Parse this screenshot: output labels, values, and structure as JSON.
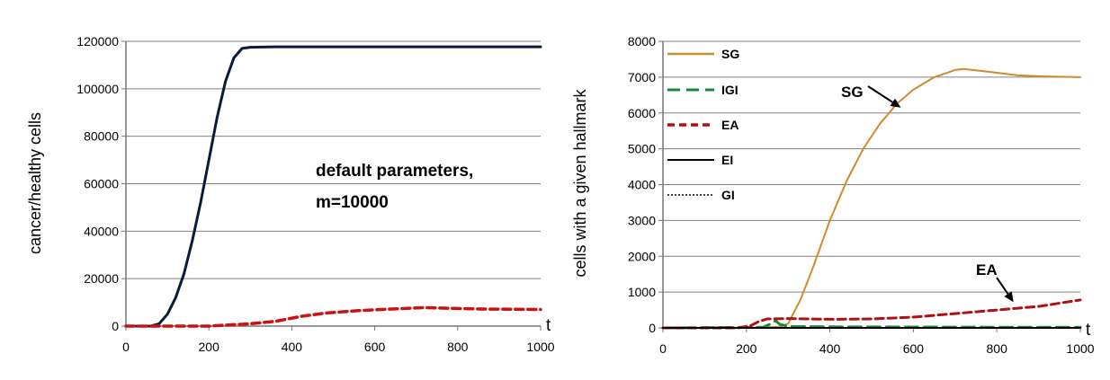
{
  "chart_data": [
    {
      "type": "line",
      "xlabel": "t",
      "ylabel": "cancer/healthy cells",
      "xlim": [
        0,
        1000
      ],
      "ylim": [
        0,
        120000
      ],
      "x_ticks": [
        "0",
        "200",
        "400",
        "600",
        "800",
        "1000"
      ],
      "y_ticks": [
        "0",
        "20000",
        "40000",
        "60000",
        "80000",
        "100000",
        "120000"
      ],
      "annotation": [
        "default parameters,",
        "m=10000"
      ],
      "grid": "horizontal",
      "series": [
        {
          "color": "#0b1a3a",
          "style": "solid",
          "points": [
            [
              0,
              0
            ],
            [
              60,
              0
            ],
            [
              80,
              1000
            ],
            [
              100,
              5000
            ],
            [
              120,
              12000
            ],
            [
              140,
              22000
            ],
            [
              160,
              36000
            ],
            [
              180,
              52000
            ],
            [
              200,
              70000
            ],
            [
              220,
              88000
            ],
            [
              240,
              103000
            ],
            [
              260,
              113000
            ],
            [
              280,
              117000
            ],
            [
              300,
              117500
            ],
            [
              360,
              117700
            ],
            [
              1000,
              117700
            ]
          ]
        },
        {
          "color": "#cc1111",
          "style": "dashed",
          "points": [
            [
              0,
              0
            ],
            [
              200,
              0
            ],
            [
              260,
              600
            ],
            [
              300,
              1000
            ],
            [
              360,
              2000
            ],
            [
              420,
              4000
            ],
            [
              480,
              5500
            ],
            [
              560,
              6500
            ],
            [
              640,
              7200
            ],
            [
              720,
              7800
            ],
            [
              780,
              7500
            ],
            [
              860,
              7200
            ],
            [
              1000,
              7000
            ]
          ]
        }
      ]
    },
    {
      "type": "line",
      "xlabel": "t",
      "ylabel": "cells with a given hallmark",
      "xlim": [
        0,
        1000
      ],
      "ylim": [
        0,
        8000
      ],
      "x_ticks": [
        "0",
        "200",
        "400",
        "600",
        "800",
        "1000"
      ],
      "y_ticks": [
        "0",
        "1000",
        "2000",
        "3000",
        "4000",
        "5000",
        "6000",
        "7000",
        "8000"
      ],
      "grid": "horizontal",
      "legend": [
        {
          "name": "SG",
          "color": "#d08a2e",
          "style": "solid"
        },
        {
          "name": "IGI",
          "color": "#1b8a3a",
          "style": "longdash"
        },
        {
          "name": "EA",
          "color": "#b01010",
          "style": "dashed"
        },
        {
          "name": "EI",
          "color": "#000000",
          "style": "solid"
        },
        {
          "name": "GI",
          "color": "#000000",
          "style": "dotted"
        }
      ],
      "arrows": [
        {
          "label": "SG",
          "target": [
            570,
            6150
          ]
        },
        {
          "label": "EA",
          "target": [
            840,
            720
          ]
        }
      ],
      "series": [
        {
          "name": "SG",
          "color": "#d08a2e",
          "style": "solid",
          "points": [
            [
              0,
              0
            ],
            [
              200,
              0
            ],
            [
              280,
              30
            ],
            [
              300,
              120
            ],
            [
              330,
              800
            ],
            [
              360,
              1700
            ],
            [
              400,
              3000
            ],
            [
              440,
              4100
            ],
            [
              480,
              5000
            ],
            [
              520,
              5700
            ],
            [
              560,
              6250
            ],
            [
              600,
              6650
            ],
            [
              650,
              7000
            ],
            [
              700,
              7200
            ],
            [
              720,
              7230
            ],
            [
              780,
              7150
            ],
            [
              850,
              7050
            ],
            [
              920,
              7020
            ],
            [
              1000,
              7000
            ]
          ]
        },
        {
          "name": "IGI",
          "color": "#1b8a3a",
          "style": "longdash",
          "points": [
            [
              0,
              0
            ],
            [
              240,
              20
            ],
            [
              260,
              120
            ],
            [
              270,
              200
            ],
            [
              280,
              100
            ],
            [
              300,
              40
            ],
            [
              400,
              30
            ],
            [
              600,
              25
            ],
            [
              800,
              20
            ],
            [
              1000,
              20
            ]
          ]
        },
        {
          "name": "EA",
          "color": "#b01010",
          "style": "dashed",
          "points": [
            [
              0,
              0
            ],
            [
              180,
              0
            ],
            [
              210,
              60
            ],
            [
              230,
              180
            ],
            [
              250,
              250
            ],
            [
              300,
              260
            ],
            [
              400,
              240
            ],
            [
              500,
              250
            ],
            [
              560,
              280
            ],
            [
              600,
              300
            ],
            [
              700,
              400
            ],
            [
              800,
              500
            ],
            [
              900,
              600
            ],
            [
              1000,
              780
            ]
          ]
        },
        {
          "name": "EI",
          "color": "#000000",
          "style": "solid",
          "points": [
            [
              0,
              0
            ],
            [
              1000,
              0
            ]
          ]
        },
        {
          "name": "GI",
          "color": "#000000",
          "style": "dotted",
          "points": [
            [
              0,
              0
            ],
            [
              1000,
              0
            ]
          ]
        }
      ]
    }
  ]
}
